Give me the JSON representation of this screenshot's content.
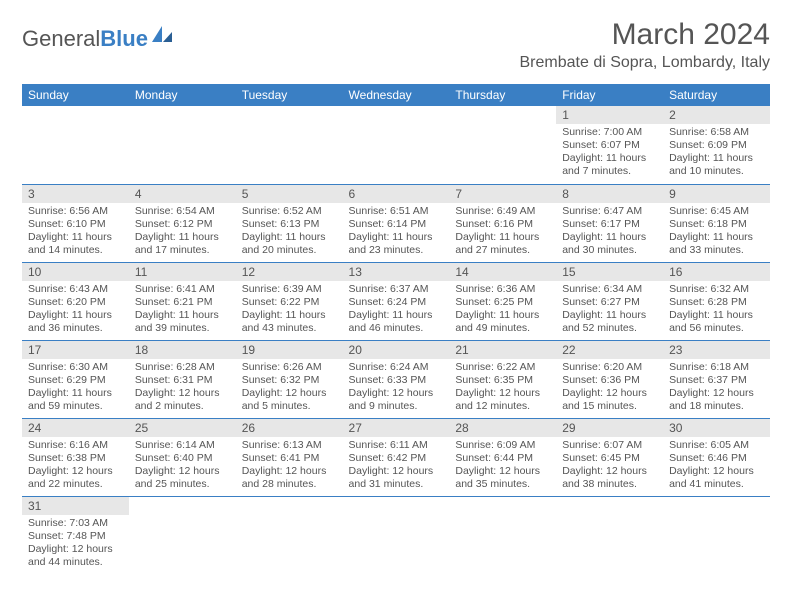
{
  "brand": {
    "name_part1": "General",
    "name_part2": "Blue"
  },
  "title": "March 2024",
  "location": "Brembate di Sopra, Lombardy, Italy",
  "colors": {
    "accent": "#3a7fc4",
    "header_bg": "#3a7fc4",
    "daynum_bg": "#e7e7e7",
    "text": "#555555"
  },
  "weekdays": [
    "Sunday",
    "Monday",
    "Tuesday",
    "Wednesday",
    "Thursday",
    "Friday",
    "Saturday"
  ],
  "weeks": [
    [
      null,
      null,
      null,
      null,
      null,
      {
        "n": "1",
        "sunrise": "7:00 AM",
        "sunset": "6:07 PM",
        "dayh": "11",
        "daym": "7"
      },
      {
        "n": "2",
        "sunrise": "6:58 AM",
        "sunset": "6:09 PM",
        "dayh": "11",
        "daym": "10"
      }
    ],
    [
      {
        "n": "3",
        "sunrise": "6:56 AM",
        "sunset": "6:10 PM",
        "dayh": "11",
        "daym": "14"
      },
      {
        "n": "4",
        "sunrise": "6:54 AM",
        "sunset": "6:12 PM",
        "dayh": "11",
        "daym": "17"
      },
      {
        "n": "5",
        "sunrise": "6:52 AM",
        "sunset": "6:13 PM",
        "dayh": "11",
        "daym": "20"
      },
      {
        "n": "6",
        "sunrise": "6:51 AM",
        "sunset": "6:14 PM",
        "dayh": "11",
        "daym": "23"
      },
      {
        "n": "7",
        "sunrise": "6:49 AM",
        "sunset": "6:16 PM",
        "dayh": "11",
        "daym": "27"
      },
      {
        "n": "8",
        "sunrise": "6:47 AM",
        "sunset": "6:17 PM",
        "dayh": "11",
        "daym": "30"
      },
      {
        "n": "9",
        "sunrise": "6:45 AM",
        "sunset": "6:18 PM",
        "dayh": "11",
        "daym": "33"
      }
    ],
    [
      {
        "n": "10",
        "sunrise": "6:43 AM",
        "sunset": "6:20 PM",
        "dayh": "11",
        "daym": "36"
      },
      {
        "n": "11",
        "sunrise": "6:41 AM",
        "sunset": "6:21 PM",
        "dayh": "11",
        "daym": "39"
      },
      {
        "n": "12",
        "sunrise": "6:39 AM",
        "sunset": "6:22 PM",
        "dayh": "11",
        "daym": "43"
      },
      {
        "n": "13",
        "sunrise": "6:37 AM",
        "sunset": "6:24 PM",
        "dayh": "11",
        "daym": "46"
      },
      {
        "n": "14",
        "sunrise": "6:36 AM",
        "sunset": "6:25 PM",
        "dayh": "11",
        "daym": "49"
      },
      {
        "n": "15",
        "sunrise": "6:34 AM",
        "sunset": "6:27 PM",
        "dayh": "11",
        "daym": "52"
      },
      {
        "n": "16",
        "sunrise": "6:32 AM",
        "sunset": "6:28 PM",
        "dayh": "11",
        "daym": "56"
      }
    ],
    [
      {
        "n": "17",
        "sunrise": "6:30 AM",
        "sunset": "6:29 PM",
        "dayh": "11",
        "daym": "59"
      },
      {
        "n": "18",
        "sunrise": "6:28 AM",
        "sunset": "6:31 PM",
        "dayh": "12",
        "daym": "2"
      },
      {
        "n": "19",
        "sunrise": "6:26 AM",
        "sunset": "6:32 PM",
        "dayh": "12",
        "daym": "5"
      },
      {
        "n": "20",
        "sunrise": "6:24 AM",
        "sunset": "6:33 PM",
        "dayh": "12",
        "daym": "9"
      },
      {
        "n": "21",
        "sunrise": "6:22 AM",
        "sunset": "6:35 PM",
        "dayh": "12",
        "daym": "12"
      },
      {
        "n": "22",
        "sunrise": "6:20 AM",
        "sunset": "6:36 PM",
        "dayh": "12",
        "daym": "15"
      },
      {
        "n": "23",
        "sunrise": "6:18 AM",
        "sunset": "6:37 PM",
        "dayh": "12",
        "daym": "18"
      }
    ],
    [
      {
        "n": "24",
        "sunrise": "6:16 AM",
        "sunset": "6:38 PM",
        "dayh": "12",
        "daym": "22"
      },
      {
        "n": "25",
        "sunrise": "6:14 AM",
        "sunset": "6:40 PM",
        "dayh": "12",
        "daym": "25"
      },
      {
        "n": "26",
        "sunrise": "6:13 AM",
        "sunset": "6:41 PM",
        "dayh": "12",
        "daym": "28"
      },
      {
        "n": "27",
        "sunrise": "6:11 AM",
        "sunset": "6:42 PM",
        "dayh": "12",
        "daym": "31"
      },
      {
        "n": "28",
        "sunrise": "6:09 AM",
        "sunset": "6:44 PM",
        "dayh": "12",
        "daym": "35"
      },
      {
        "n": "29",
        "sunrise": "6:07 AM",
        "sunset": "6:45 PM",
        "dayh": "12",
        "daym": "38"
      },
      {
        "n": "30",
        "sunrise": "6:05 AM",
        "sunset": "6:46 PM",
        "dayh": "12",
        "daym": "41"
      }
    ],
    [
      {
        "n": "31",
        "sunrise": "7:03 AM",
        "sunset": "7:48 PM",
        "dayh": "12",
        "daym": "44"
      },
      null,
      null,
      null,
      null,
      null,
      null
    ]
  ]
}
